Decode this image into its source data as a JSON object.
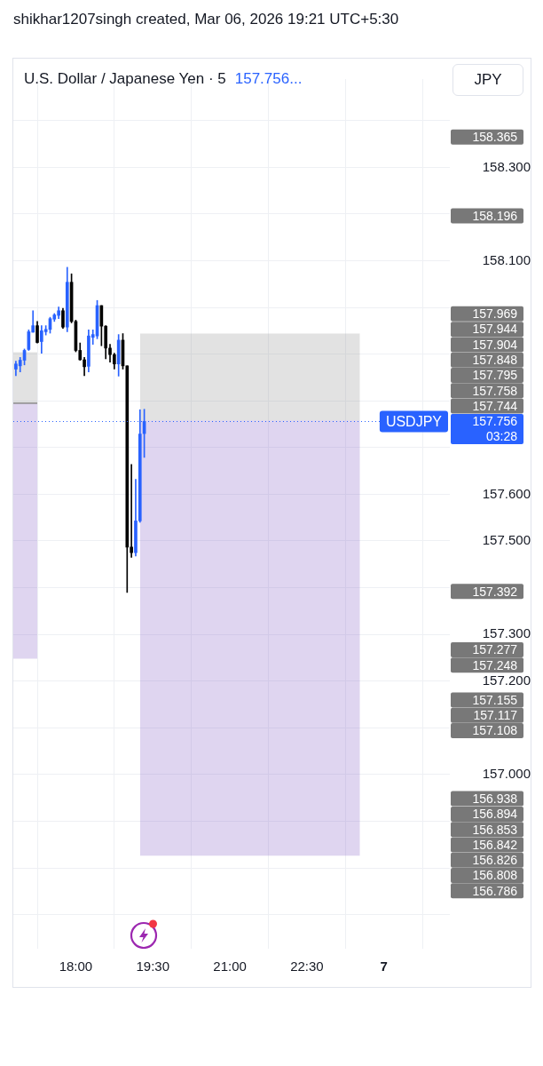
{
  "chart_data": {
    "type": "candlestick",
    "title": "U.S. Dollar / Japanese Yen · 5",
    "subtitle": "shikhar1207singh created, Mar 06, 2026 19:21 UTC+5:30",
    "ylabel": "JPY",
    "annotations": [
      "157.756...",
      "158.365",
      "158.196",
      "157.969",
      "157.944",
      "157.904",
      "157.848",
      "157.795",
      "157.758",
      "157.756",
      "03:28",
      "157.744",
      "157.392",
      "157.277",
      "157.248",
      "157.155",
      "157.117",
      "157.108",
      "156.938",
      "156.894",
      "156.853",
      "156.842",
      "156.826",
      "156.808",
      "156.786"
    ],
    "series": [
      {
        "x": [
          "2026-03-06T16:50",
          "2026-03-06T16:55",
          "2026-03-06T17:00",
          "2026-03-06T17:05",
          "2026-03-06T17:10",
          "2026-03-06T17:15",
          "2026-03-06T17:20",
          "2026-03-06T17:25",
          "2026-03-06T17:30",
          "2026-03-06T17:35",
          "2026-03-06T17:40",
          "2026-03-06T17:45",
          "2026-03-06T17:50",
          "2026-03-06T17:55",
          "2026-03-06T18:00",
          "2026-03-06T18:05",
          "2026-03-06T18:10",
          "2026-03-06T18:15",
          "2026-03-06T18:20",
          "2026-03-06T18:25",
          "2026-03-06T18:30",
          "2026-03-06T18:35",
          "2026-03-06T18:40",
          "2026-03-06T18:45",
          "2026-03-06T18:50",
          "2026-03-06T18:55",
          "2026-03-06T19:00",
          "2026-03-06T19:05",
          "2026-03-06T19:10",
          "2026-03-06T19:15",
          "2026-03-06T19:20"
        ],
        "ohlc": [
          [
            157.868,
            157.885,
            157.854,
            157.879
          ],
          [
            157.875,
            157.893,
            157.862,
            157.887
          ],
          [
            157.887,
            157.911,
            157.877,
            157.908
          ],
          [
            157.91,
            157.952,
            157.908,
            157.948
          ],
          [
            157.947,
            157.993,
            157.947,
            157.961
          ],
          [
            157.961,
            157.97,
            157.924,
            157.925
          ],
          [
            157.927,
            157.961,
            157.902,
            157.95
          ],
          [
            157.948,
            157.961,
            157.941,
            157.953
          ],
          [
            157.953,
            157.979,
            157.945,
            157.976
          ],
          [
            157.975,
            157.987,
            157.97,
            157.984
          ],
          [
            157.983,
            158.001,
            157.976,
            157.993
          ],
          [
            157.993,
            157.998,
            157.955,
            157.958
          ],
          [
            157.958,
            158.086,
            157.948,
            158.054
          ],
          [
            158.054,
            158.072,
            157.967,
            157.97
          ],
          [
            157.97,
            157.973,
            157.905,
            157.908
          ],
          [
            157.908,
            157.924,
            157.887,
            157.888
          ],
          [
            157.888,
            157.893,
            157.854,
            157.873
          ],
          [
            157.874,
            157.952,
            157.862,
            157.939
          ],
          [
            157.936,
            157.952,
            157.921,
            157.942
          ],
          [
            157.939,
            158.015,
            157.933,
            158.004
          ],
          [
            158.004,
            158.004,
            157.918,
            157.96
          ],
          [
            157.96,
            157.961,
            157.89,
            157.913
          ],
          [
            157.913,
            157.921,
            157.883,
            157.899
          ],
          [
            157.899,
            157.902,
            157.868,
            157.879
          ],
          [
            157.879,
            157.942,
            157.853,
            157.93
          ],
          [
            157.93,
            157.944,
            157.868,
            157.875
          ],
          [
            157.875,
            157.875,
            157.39,
            157.487
          ],
          [
            157.487,
            157.664,
            157.465,
            157.475
          ],
          [
            157.475,
            157.632,
            157.468,
            157.543
          ],
          [
            157.543,
            157.781,
            157.54,
            157.729
          ],
          [
            157.73,
            157.782,
            157.679,
            157.756
          ]
        ],
        "colors": [
          "#2962ff",
          "#2962ff",
          "#2962ff",
          "#2962ff",
          "#2962ff",
          "#000000",
          "#2962ff",
          "#2962ff",
          "#2962ff",
          "#2962ff",
          "#2962ff",
          "#000000",
          "#2962ff",
          "#000000",
          "#000000",
          "#000000",
          "#000000",
          "#2962ff",
          "#2962ff",
          "#2962ff",
          "#000000",
          "#000000",
          "#000000",
          "#000000",
          "#2962ff",
          "#000000",
          "#000000",
          "#000000",
          "#2962ff",
          "#2962ff",
          "#2962ff"
        ]
      },
      {
        "type": "line",
        "x": [
          "2026-03-06T16:47",
          "2026-03-06T17:15"
        ],
        "values": [
          null,
          null
        ],
        "lower": [
          157.248,
          157.248
        ],
        "upper": [
          157.795,
          157.795
        ],
        "color": "#7e57c2"
      },
      {
        "type": "line",
        "x": [
          "2026-03-06T16:47",
          "2026-03-06T17:15"
        ],
        "values": [
          157.795,
          157.795
        ],
        "lower": [
          157.795,
          157.795
        ],
        "upper": [
          157.904,
          157.904
        ],
        "color": "#8a8a8a"
      },
      {
        "type": "line",
        "x": [
          "2026-03-06T19:15",
          "2026-03-06T23:32"
        ],
        "values": [
          null,
          null
        ],
        "lower": [
          156.826,
          156.826
        ],
        "upper": [
          157.758,
          157.758
        ],
        "color": "#7e57c2"
      },
      {
        "type": "line",
        "x": [
          "2026-03-06T19:15",
          "2026-03-06T23:32"
        ],
        "values": [
          null,
          null
        ],
        "lower": [
          157.758,
          157.758
        ],
        "upper": [
          157.944,
          157.944
        ],
        "color": "#8a8a8a"
      }
    ],
    "xlim": [
      "2026-03-06T16:47",
      "2026-03-07T01:17"
    ],
    "xticks": [
      {
        "value": "2026-03-06T18:00",
        "label": "18:00"
      },
      {
        "value": "2026-03-06T19:30",
        "label": "19:30"
      },
      {
        "value": "2026-03-06T21:00",
        "label": "21:00"
      },
      {
        "value": "2026-03-06T22:30",
        "label": "22:30"
      },
      {
        "value": "2026-03-07T00:00",
        "label": "7"
      }
    ],
    "ylim": [
      156.627,
      158.489
    ],
    "yticks": [
      {
        "value": 156.7,
        "label": null
      },
      {
        "value": 156.8,
        "label": null
      },
      {
        "value": 156.9,
        "label": null
      },
      {
        "value": 157,
        "label": "157.000"
      },
      {
        "value": 157.1,
        "label": null
      },
      {
        "value": 157.2,
        "label": "157.200"
      },
      {
        "value": 157.3,
        "label": "157.300"
      },
      {
        "value": 157.4,
        "label": null
      },
      {
        "value": 157.5,
        "label": "157.500"
      },
      {
        "value": 157.6,
        "label": "157.600"
      },
      {
        "value": 157.7,
        "label": null
      },
      {
        "value": 157.8,
        "label": null
      },
      {
        "value": 157.9,
        "label": null
      },
      {
        "value": 158,
        "label": null
      },
      {
        "value": 158.1,
        "label": "158.100"
      },
      {
        "value": 158.2,
        "label": null
      },
      {
        "value": 158.3,
        "label": "158.300"
      },
      {
        "value": 158.4,
        "label": null
      }
    ],
    "ref_lines": [
      {
        "axis": "y",
        "value": 157.756,
        "label": "USDJPY",
        "color": "#2962ff",
        "line_style": "dotted"
      }
    ],
    "grid": true
  }
}
